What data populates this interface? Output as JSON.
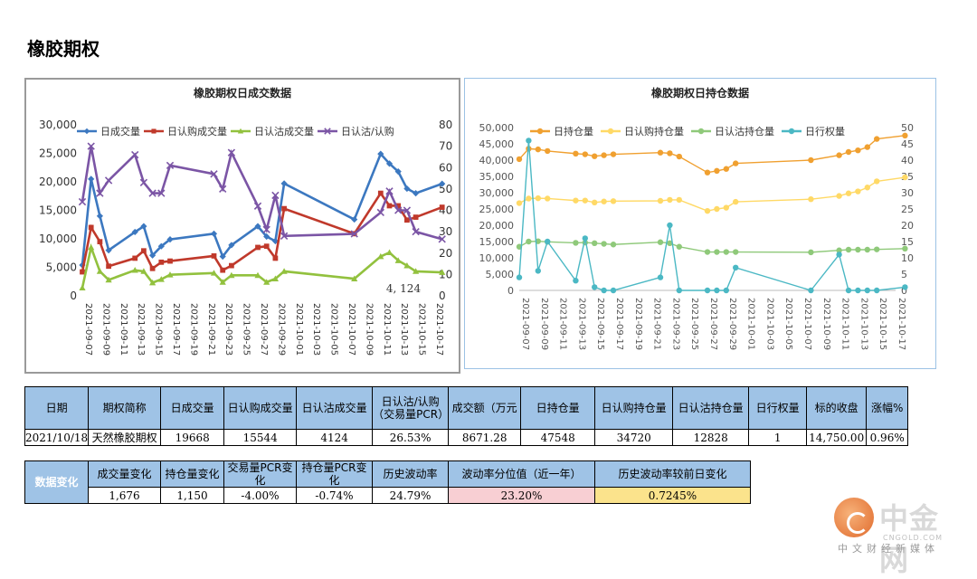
{
  "page": {
    "title": "橡胶期权"
  },
  "chart_data": [
    {
      "type": "line",
      "title": "橡胶期权日成交数据",
      "x": [
        "2021-09-07",
        "2021-09-08",
        "2021-09-09",
        "2021-09-10",
        "2021-09-13",
        "2021-09-14",
        "2021-09-15",
        "2021-09-16",
        "2021-09-17",
        "2021-09-22",
        "2021-09-23",
        "2021-09-24",
        "2021-09-27",
        "2021-09-28",
        "2021-09-29",
        "2021-09-30",
        "2021-10-08",
        "2021-10-11",
        "2021-10-12",
        "2021-10-13",
        "2021-10-14",
        "2021-10-15",
        "2021-10-18"
      ],
      "x_ticks": [
        "2021-09-07",
        "2021-09-09",
        "2021-09-11",
        "2021-09-13",
        "2021-09-15",
        "2021-09-17",
        "2021-09-19",
        "2021-09-21",
        "2021-09-23",
        "2021-09-25",
        "2021-09-27",
        "2021-09-29",
        "2021-10-01",
        "2021-10-03",
        "2021-10-05",
        "2021-10-07",
        "2021-10-09",
        "2021-10-11",
        "2021-10-13",
        "2021-10-15",
        "2021-10-17"
      ],
      "y_left": {
        "lim": [
          0,
          30000
        ],
        "ticks": [
          "0",
          "5,000",
          "10,000",
          "15,000",
          "20,000",
          "25,000",
          "30,000"
        ]
      },
      "y_right": {
        "lim": [
          0,
          80
        ],
        "ticks": [
          "0",
          "10",
          "20",
          "30",
          "40",
          "50",
          "60",
          "70",
          "80"
        ]
      },
      "legend": "top",
      "grid": false,
      "series": [
        {
          "name": "日成交量",
          "axis": "left",
          "color": "#3c78c0",
          "marker": "diamond",
          "values": [
            5400,
            20500,
            14000,
            8000,
            11200,
            12200,
            7100,
            8700,
            9900,
            10900,
            6900,
            8900,
            12200,
            10400,
            9600,
            19700,
            13400,
            24900,
            23200,
            21800,
            18800,
            18000,
            19668
          ]
        },
        {
          "name": "日认购成交量",
          "axis": "left",
          "color": "#c0392b",
          "marker": "square",
          "values": [
            4200,
            12000,
            9500,
            5200,
            6600,
            7900,
            4800,
            5900,
            6100,
            7000,
            4500,
            5300,
            8500,
            8700,
            6600,
            15300,
            10900,
            18000,
            15800,
            15800,
            13300,
            13800,
            15544
          ]
        },
        {
          "name": "日认沽成交量",
          "axis": "left",
          "color": "#92c13e",
          "marker": "triangle",
          "values": [
            1400,
            8500,
            4300,
            2800,
            4500,
            4300,
            2300,
            2900,
            3700,
            4000,
            2400,
            3600,
            3600,
            2400,
            3000,
            4300,
            3000,
            6900,
            7600,
            6200,
            5300,
            4300,
            4124
          ]
        },
        {
          "name": "日认沽/认购",
          "axis": "right",
          "color": "#7b55a5",
          "marker": "x",
          "values": [
            44,
            70,
            48,
            54,
            66,
            53,
            48,
            48,
            61,
            57,
            50,
            67,
            42,
            31,
            47,
            28,
            29,
            39,
            49,
            40,
            40,
            30,
            26.53
          ]
        }
      ],
      "annotations": [
        "4, 124"
      ]
    },
    {
      "type": "line",
      "title": "橡胶期权日持仓数据",
      "x": [
        "2021-09-07",
        "2021-09-08",
        "2021-09-09",
        "2021-09-10",
        "2021-09-13",
        "2021-09-14",
        "2021-09-15",
        "2021-09-16",
        "2021-09-17",
        "2021-09-22",
        "2021-09-23",
        "2021-09-24",
        "2021-09-27",
        "2021-09-28",
        "2021-09-29",
        "2021-09-30",
        "2021-10-08",
        "2021-10-11",
        "2021-10-12",
        "2021-10-13",
        "2021-10-14",
        "2021-10-15",
        "2021-10-18"
      ],
      "x_ticks": [
        "2021-09-07",
        "2021-09-09",
        "2021-09-11",
        "2021-09-13",
        "2021-09-15",
        "2021-09-17",
        "2021-09-19",
        "2021-09-21",
        "2021-09-23",
        "2021-09-25",
        "2021-09-27",
        "2021-09-29",
        "2021-10-01",
        "2021-10-03",
        "2021-10-05",
        "2021-10-07",
        "2021-10-09",
        "2021-10-11",
        "2021-10-13",
        "2021-10-15",
        "2021-10-17"
      ],
      "y_left": {
        "lim": [
          0,
          50000
        ],
        "ticks": [
          "0",
          "5,000",
          "10,000",
          "15,000",
          "20,000",
          "25,000",
          "30,000",
          "35,000",
          "40,000",
          "45,000",
          "50,000"
        ]
      },
      "y_right": {
        "lim": [
          0,
          50
        ],
        "ticks": [
          "0",
          "5",
          "10",
          "15",
          "20",
          "25",
          "30",
          "35",
          "40",
          "45",
          "50"
        ]
      },
      "legend": "top",
      "grid": false,
      "series": [
        {
          "name": "日持仓量",
          "axis": "left",
          "color": "#f0a030",
          "marker": "circle",
          "values": [
            40300,
            43500,
            43300,
            42800,
            42000,
            41800,
            41200,
            41500,
            41800,
            42300,
            42100,
            41100,
            36200,
            36700,
            37300,
            39000,
            40000,
            41500,
            42500,
            43000,
            44000,
            46500,
            47548
          ]
        },
        {
          "name": "日认购持仓量",
          "axis": "left",
          "color": "#ffd966",
          "marker": "circle",
          "values": [
            26800,
            28200,
            28300,
            28200,
            27600,
            27600,
            27000,
            27300,
            27400,
            27500,
            27800,
            27800,
            24400,
            25000,
            25400,
            27200,
            28000,
            29000,
            29800,
            30400,
            31600,
            33500,
            34720
          ]
        },
        {
          "name": "日认沽持仓量",
          "axis": "left",
          "color": "#8fc97a",
          "marker": "circle",
          "values": [
            13400,
            15000,
            15100,
            14900,
            14600,
            14700,
            14500,
            14300,
            14100,
            14800,
            14500,
            13400,
            11800,
            11800,
            11800,
            11800,
            11700,
            12300,
            12500,
            12500,
            12500,
            12600,
            12828
          ]
        },
        {
          "name": "日行权量",
          "axis": "right",
          "color": "#4bb8c4",
          "marker": "circle",
          "values": [
            4,
            46,
            6,
            15,
            3,
            16,
            1,
            0,
            0,
            4,
            20,
            0,
            0,
            0,
            0,
            7,
            0,
            11,
            0,
            0,
            0,
            0,
            1
          ]
        }
      ]
    }
  ],
  "table1": {
    "headers": [
      "日期",
      "期权简称",
      "日成交量",
      "日认购成交量",
      "日认沽成交量",
      "日认沽/认购（交易量PCR）",
      "成交额（万元",
      "日持仓量",
      "日认购持仓量",
      "日认沽持仓量",
      "日行权量",
      "标的收盘",
      "涨幅%"
    ],
    "row": [
      "2021/10/18",
      "天然橡胶期权",
      "19668",
      "15544",
      "4124",
      "26.53%",
      "8671.28",
      "47548",
      "34720",
      "12828",
      "1",
      "14,750.00",
      "0.96%"
    ]
  },
  "table2": {
    "label": "数据变化",
    "headers": [
      "成交量变化",
      "持仓量变化",
      "交易量PCR变化",
      "持仓量PCR变化",
      "历史波动率",
      "波动率分位值（近一年）",
      "历史波动率较前日变化"
    ],
    "row": [
      "1,676",
      "1,150",
      "-4.00%",
      "-0.74%",
      "24.79%",
      "23.20%",
      "0.7245%"
    ],
    "highlight_colors": {
      "pink": "#f8cfd3",
      "yellow": "#fbe38c"
    }
  },
  "logo": {
    "name": "中金网",
    "sub_en": "CNGOLD.COM",
    "sub_cn": "中文财经新媒体",
    "icon": "swirl-logo-icon"
  }
}
